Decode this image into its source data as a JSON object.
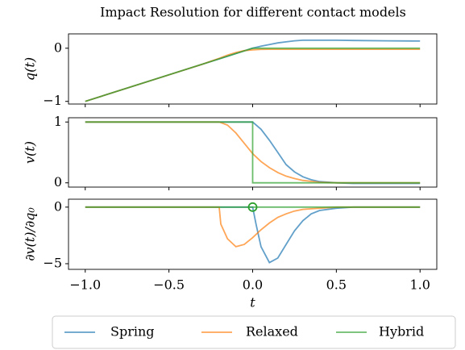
{
  "chart_data": [
    {
      "type": "line",
      "title": "Impact Resolution for different contact models",
      "ylabel": "q(t)",
      "xlim": [
        -1.1,
        1.1
      ],
      "xticks": [
        -1,
        -0.5,
        0,
        0.5,
        1
      ],
      "ylim": [
        -1.05,
        0.27
      ],
      "yticks": [
        {
          "value": -1,
          "label": "−1"
        },
        0
      ],
      "legend": "lower center",
      "series": [
        {
          "name": "Spring",
          "color": "#1f77b4",
          "x": [
            -1,
            -0.5,
            -0.2,
            -0.1,
            0,
            0.05,
            0.1,
            0.15,
            0.2,
            0.25,
            0.3,
            0.4,
            0.5,
            0.6,
            0.8,
            1
          ],
          "values": [
            -1,
            -0.5,
            -0.2,
            -0.1,
            0,
            0.04,
            0.07,
            0.1,
            0.12,
            0.14,
            0.15,
            0.15,
            0.15,
            0.145,
            0.14,
            0.135
          ]
        },
        {
          "name": "Relaxed",
          "color": "#ff7f0e",
          "x": [
            -1,
            -0.5,
            -0.3,
            -0.2,
            -0.15,
            -0.1,
            -0.05,
            0,
            0.05,
            0.1,
            0.2,
            0.5,
            1
          ],
          "values": [
            -1,
            -0.5,
            -0.3,
            -0.19,
            -0.13,
            -0.08,
            -0.045,
            -0.03,
            -0.022,
            -0.02,
            -0.02,
            -0.02,
            -0.02
          ]
        },
        {
          "name": "Hybrid",
          "color": "#2ca02c",
          "x": [
            -1,
            0,
            1
          ],
          "values": [
            -1,
            0,
            0
          ]
        }
      ]
    },
    {
      "type": "line",
      "ylabel": "v(t)",
      "xlim": [
        -1.1,
        1.1
      ],
      "xticks": [
        -1,
        -0.5,
        0,
        0.5,
        1
      ],
      "ylim": [
        -0.07,
        1.07
      ],
      "yticks": [
        0,
        1
      ],
      "series": [
        {
          "color": "#1f77b4",
          "x": [
            -1,
            0,
            0.05,
            0.1,
            0.15,
            0.2,
            0.25,
            0.3,
            0.35,
            0.4,
            0.5,
            0.6,
            1
          ],
          "values": [
            1,
            1,
            0.88,
            0.7,
            0.5,
            0.3,
            0.18,
            0.1,
            0.05,
            0.02,
            0,
            -0.01,
            -0.01
          ]
        },
        {
          "color": "#ff7f0e",
          "x": [
            -1,
            -0.2,
            -0.15,
            -0.1,
            -0.05,
            0,
            0.05,
            0.1,
            0.15,
            0.2,
            0.25,
            0.3,
            0.4,
            0.5,
            1
          ],
          "values": [
            1,
            1,
            0.95,
            0.82,
            0.65,
            0.48,
            0.35,
            0.25,
            0.17,
            0.11,
            0.07,
            0.04,
            0.01,
            0,
            0
          ]
        },
        {
          "color": "#2ca02c",
          "x": [
            -1,
            0,
            0,
            1
          ],
          "values": [
            1,
            1,
            0,
            0
          ]
        }
      ]
    },
    {
      "type": "line",
      "ylabel": "∂v(t)/∂q₀",
      "xlabel": "t",
      "xlim": [
        -1.1,
        1.1
      ],
      "xticks": [
        {
          "value": -1,
          "label": "−1.0"
        },
        {
          "value": -0.5,
          "label": "−0.5"
        },
        {
          "value": 0,
          "label": "0.0"
        },
        {
          "value": 0.5,
          "label": "0.5"
        },
        {
          "value": 1,
          "label": "1.0"
        }
      ],
      "ylim": [
        -5.5,
        0.7
      ],
      "yticks": [
        {
          "value": -5,
          "label": "−5"
        },
        0
      ],
      "series": [
        {
          "color": "#1f77b4",
          "x": [
            -1,
            0,
            0.02,
            0.05,
            0.1,
            0.15,
            0.2,
            0.25,
            0.3,
            0.35,
            0.4,
            0.5,
            0.6,
            1
          ],
          "values": [
            0,
            0,
            -1.5,
            -3.5,
            -4.9,
            -4.5,
            -3.3,
            -2.1,
            -1.2,
            -0.6,
            -0.3,
            -0.1,
            0,
            0
          ]
        },
        {
          "color": "#ff7f0e",
          "x": [
            -1,
            -0.2,
            -0.19,
            -0.15,
            -0.1,
            -0.05,
            0,
            0.05,
            0.1,
            0.15,
            0.2,
            0.25,
            0.3,
            0.4,
            0.5,
            1
          ],
          "values": [
            0,
            0,
            -1.5,
            -2.8,
            -3.5,
            -3.3,
            -2.7,
            -2,
            -1.4,
            -0.9,
            -0.6,
            -0.35,
            -0.2,
            -0.1,
            0,
            0
          ]
        },
        {
          "color": "#2ca02c",
          "x": [
            -1,
            1
          ],
          "values": [
            0,
            0
          ]
        }
      ],
      "markers": [
        {
          "x": 0,
          "y": 0,
          "color": "#2ca02c"
        }
      ]
    }
  ]
}
